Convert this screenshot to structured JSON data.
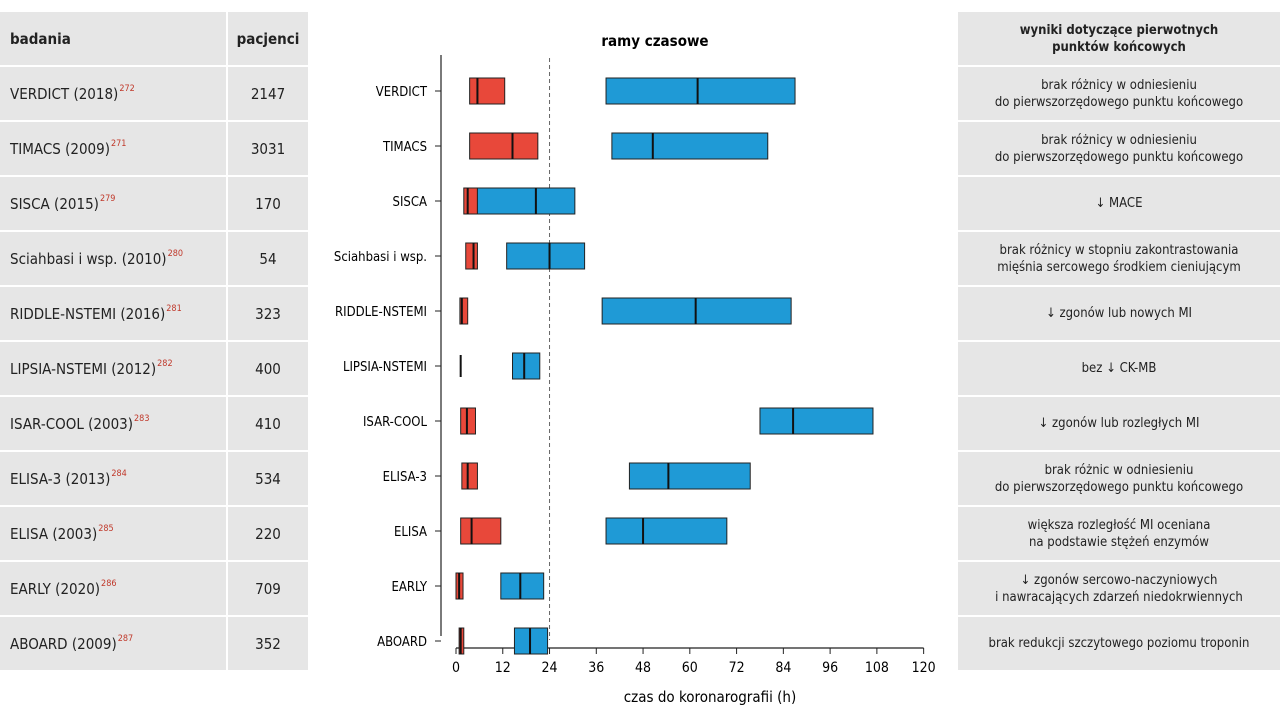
{
  "table": {
    "col1_header": "badania",
    "col2_header": "pacjenci",
    "rows": [
      {
        "name": "VERDICT (2018)",
        "ref": "272",
        "patients": "2147"
      },
      {
        "name": "TIMACS (2009)",
        "ref": "271",
        "patients": "3031"
      },
      {
        "name": "SISCA (2015)",
        "ref": "279",
        "patients": "170"
      },
      {
        "name": "Sciahbasi i wsp. (2010)",
        "ref": "280",
        "patients": "54"
      },
      {
        "name": "RIDDLE-NSTEMI (2016)",
        "ref": "281",
        "patients": "323"
      },
      {
        "name": "LIPSIA-NSTEMI (2012)",
        "ref": "282",
        "patients": "400"
      },
      {
        "name": "ISAR-COOL (2003)",
        "ref": "283",
        "patients": "410"
      },
      {
        "name": "ELISA-3 (2013)",
        "ref": "284",
        "patients": "534"
      },
      {
        "name": "ELISA (2003)",
        "ref": "285",
        "patients": "220"
      },
      {
        "name": "EARLY (2020)",
        "ref": "286",
        "patients": "709"
      },
      {
        "name": "ABOARD (2009)",
        "ref": "287",
        "patients": "352"
      }
    ]
  },
  "results": {
    "header": "wyniki dotyczące pierwotnych\npunktów końcowych",
    "rows": [
      "brak różnicy w odniesieniu\ndo pierwszorzędowego punktu końcowego",
      "brak różnicy w odniesieniu\ndo pierwszorzędowego punktu końcowego",
      "↓ MACE",
      "brak różnicy w stopniu zakontrastowania\nmięśnia sercowego środkiem cieniującym",
      "↓ zgonów lub nowych MI",
      "bez ↓ CK-MB",
      "↓ zgonów lub rozległych MI",
      "brak różnic w odniesieniu\ndo pierwszorzędowego punktu końcowego",
      "większa rozległość MI oceniana\nna podstawie stężeń enzymów",
      "↓ zgonów sercowo-naczyniowych\ni nawracających zdarzeń niedokrwiennych",
      "brak redukcji szczytowego poziomu troponin"
    ]
  },
  "chart_data": {
    "type": "bar",
    "subtype": "floating-horizontal-range",
    "title": "ramy czasowe",
    "xlabel": "czas do koronarografii (h)",
    "xlim": [
      0,
      120
    ],
    "xticks": [
      0,
      12,
      24,
      36,
      48,
      60,
      72,
      84,
      96,
      108,
      120
    ],
    "reference_line": {
      "x": 24,
      "style": "dashed"
    },
    "categories": [
      "VERDICT",
      "TIMACS",
      "SISCA",
      "Sciahbasi i wsp.",
      "RIDDLE-NSTEMI",
      "LIPSIA-NSTEMI",
      "ISAR-COOL",
      "ELISA-3",
      "ELISA",
      "EARLY",
      "ABOARD"
    ],
    "colors": {
      "early": "#e8483a",
      "delayed": "#1f9ad6"
    },
    "series": [
      {
        "key": "early",
        "values": [
          {
            "start": 3.5,
            "median": 5.5,
            "end": 12.5
          },
          {
            "start": 3.5,
            "median": 14.5,
            "end": 21.0
          },
          {
            "start": 2.0,
            "median": 3.0,
            "end": 5.5
          },
          {
            "start": 2.5,
            "median": 4.5,
            "end": 5.5
          },
          {
            "start": 1.0,
            "median": 1.5,
            "end": 3.0
          },
          {
            "start": 1.2,
            "median": 1.2,
            "end": 1.2
          },
          {
            "start": 1.2,
            "median": 2.8,
            "end": 5.0
          },
          {
            "start": 1.5,
            "median": 3.0,
            "end": 5.5
          },
          {
            "start": 1.2,
            "median": 4.0,
            "end": 11.5
          },
          {
            "start": 0.0,
            "median": 0.8,
            "end": 1.8
          },
          {
            "start": 0.8,
            "median": 1.2,
            "end": 2.0
          }
        ]
      },
      {
        "key": "delayed",
        "values": [
          {
            "start": 38.5,
            "median": 62.0,
            "end": 87.0
          },
          {
            "start": 40.0,
            "median": 50.5,
            "end": 80.0
          },
          {
            "start": 5.5,
            "median": 20.5,
            "end": 30.5
          },
          {
            "start": 13.0,
            "median": 24.0,
            "end": 33.0
          },
          {
            "start": 37.5,
            "median": 61.5,
            "end": 86.0
          },
          {
            "start": 14.5,
            "median": 17.5,
            "end": 21.5
          },
          {
            "start": 78.0,
            "median": 86.5,
            "end": 107.0
          },
          {
            "start": 44.5,
            "median": 54.5,
            "end": 75.5
          },
          {
            "start": 38.5,
            "median": 48.0,
            "end": 69.5
          },
          {
            "start": 11.5,
            "median": 16.5,
            "end": 22.5
          },
          {
            "start": 15.0,
            "median": 19.0,
            "end": 23.5
          }
        ]
      }
    ]
  }
}
